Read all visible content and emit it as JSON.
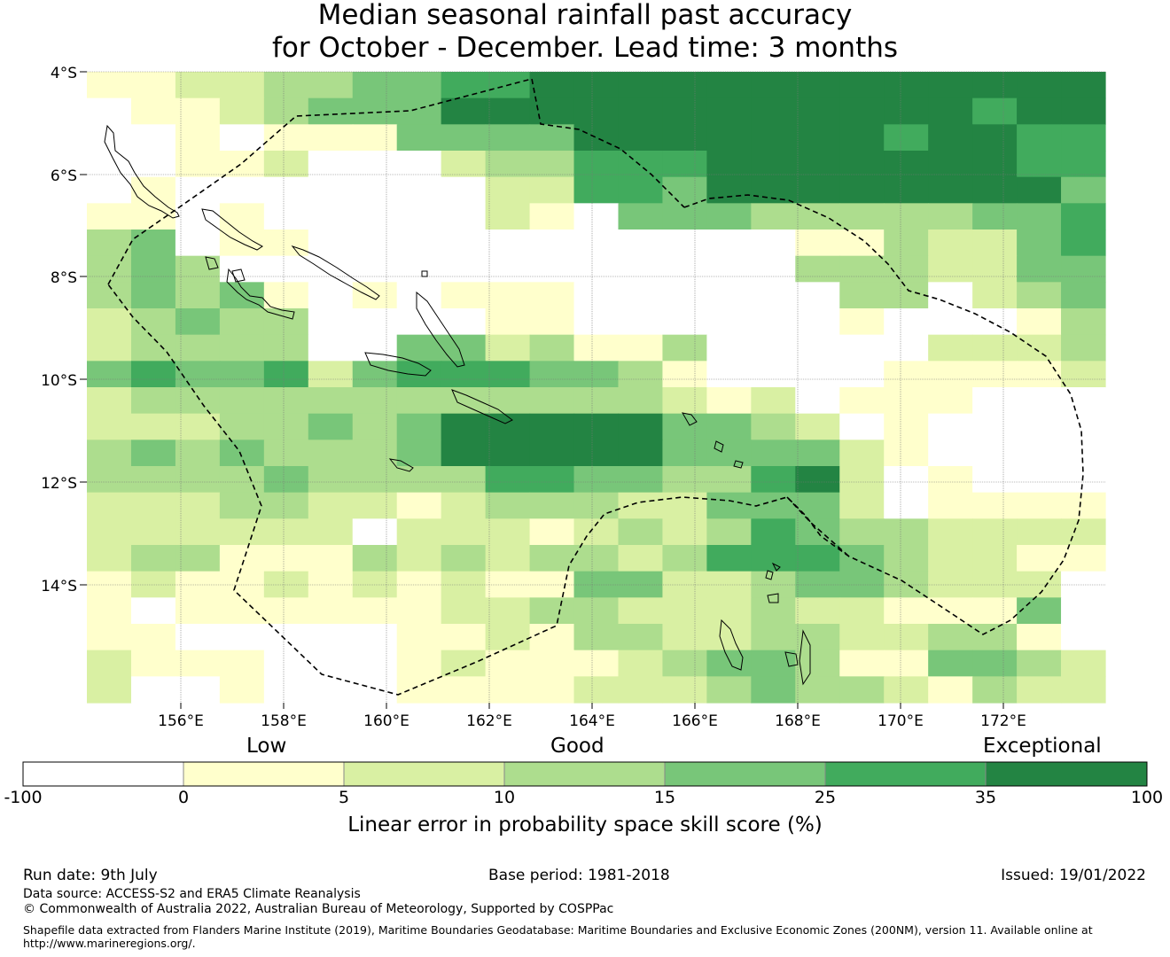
{
  "title_line1": "Median seasonal rainfall past accuracy",
  "title_line2": "for October - December. Lead time: 3 months",
  "lat_labels": [
    "4°S",
    "6°S",
    "8°S",
    "10°S",
    "12°S",
    "14°S"
  ],
  "lon_labels": [
    "156°E",
    "158°E",
    "160°E",
    "162°E",
    "164°E",
    "166°E",
    "168°E",
    "170°E",
    "172°E"
  ],
  "colorbar": {
    "categories": [
      "Low",
      "Good",
      "Exceptional"
    ],
    "ticks": [
      "-100",
      "0",
      "5",
      "10",
      "15",
      "25",
      "35",
      "100"
    ],
    "colors": [
      "#ffffff",
      "#ffffcc",
      "#d9f0a3",
      "#addd8e",
      "#78c679",
      "#41ab5d",
      "#238443"
    ],
    "label": "Linear error in probability space skill score (%)"
  },
  "grid_codes": [
    "11223344556666666666699",
    "01123444666666666666566",
    "00101114444666666656655",
    "00112000233555666666655",
    "01000000022554666666664",
    "11010000021044433333445",
    "34011000000000001132245",
    "34300000000000003332244",
    "34341010111000000330234",
    "23433000011000000100013",
    "23333004423113000002223",
    "45445245554431000011112",
    "23333333333332120111000",
    "22233434666664432010000",
    "34343334666664444210000",
    "33334333355443356201000",
    "22233221233322444201111",
    "22222202221232354332222",
    "23311132323323555432211",
    "12112121211442234432220",
    "10111111223322232211140",
    "11000001121332233223310",
    "21110001211123443114432",
    "20010001111222343321322"
  ],
  "footer": {
    "run_date": "Run date: 9th July",
    "base_period": "Base period: 1981-2018",
    "issued": "Issued: 19/01/2022",
    "data_source": "Data source: ACCESS-S2 and ERA5 Climate Reanalysis",
    "copyright": "© Commonwealth of Australia 2022, Australian Bureau of Meteorology, Supported by COSPPac",
    "shapefile": "Shapefile data extracted from Flanders Marine Institute (2019), Maritime Boundaries Geodatabase: Maritime Boundaries and Exclusive Economic Zones (200NM), version 11. Available online at http://www.marineregions.org/."
  }
}
